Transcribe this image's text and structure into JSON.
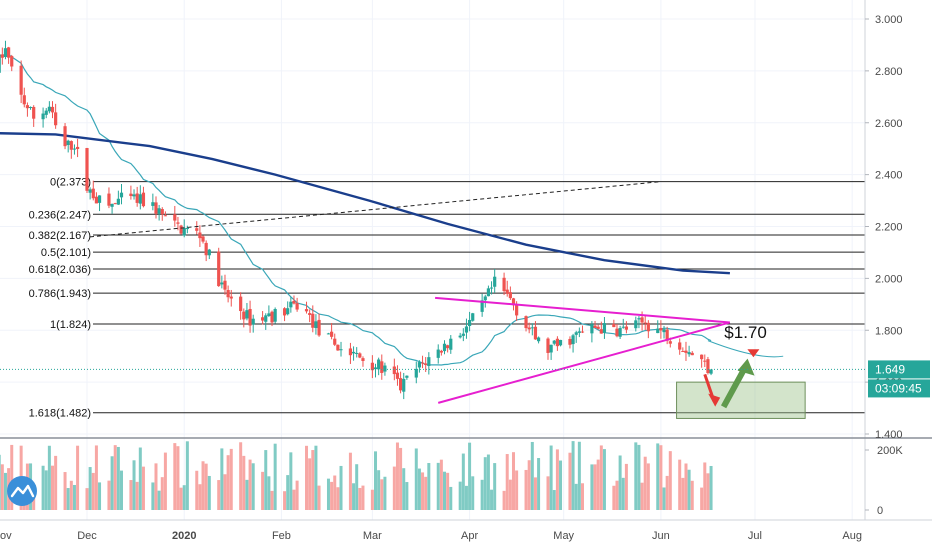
{
  "chart_data": {
    "type": "candlestick",
    "y_axis": {
      "ticks": [
        "3.000",
        "2.800",
        "2.600",
        "2.400",
        "2.200",
        "2.000",
        "1.800",
        "1.600",
        "1.400"
      ],
      "range": [
        1.4,
        3.0
      ]
    },
    "x_axis": {
      "ticks": [
        "Dec",
        "2020",
        "Feb",
        "Mar",
        "Apr",
        "May",
        "Jun",
        "Jul",
        "Aug"
      ],
      "first_tick_fragment": "ov"
    },
    "volume_axis": {
      "ticks": [
        "200K",
        "0"
      ]
    },
    "fib_levels": [
      {
        "label": "0(2.373)",
        "value": 2.373
      },
      {
        "label": "0.236(2.247)",
        "value": 2.247
      },
      {
        "label": "0.382(2.167)",
        "value": 2.167
      },
      {
        "label": "0.5(2.101)",
        "value": 2.101
      },
      {
        "label": "0.618(2.036)",
        "value": 2.036
      },
      {
        "label": "0.786(1.943)",
        "value": 1.943
      },
      {
        "label": "1(1.824)",
        "value": 1.824
      },
      {
        "label": "1.618(1.482)",
        "value": 1.482
      }
    ],
    "price_label": "1.649",
    "current_price": 1.649,
    "countdown_label": "03:09:45",
    "annotation_text": "$1.70",
    "annotation_price": 1.7,
    "colors": {
      "up": "#26a69a",
      "down": "#ef5350",
      "vol_up": "#80cbc4",
      "vol_down": "#f7a7a4",
      "ma_long": "#1a3e8c",
      "ma_short": "#3aa7b8",
      "triangle": "#e61fcf",
      "fib": "#222222",
      "price_tag": "#26a69a",
      "target_box": "#9ec48b",
      "arrow_down": "#e53935",
      "arrow_up": "#5f9a4c"
    }
  }
}
